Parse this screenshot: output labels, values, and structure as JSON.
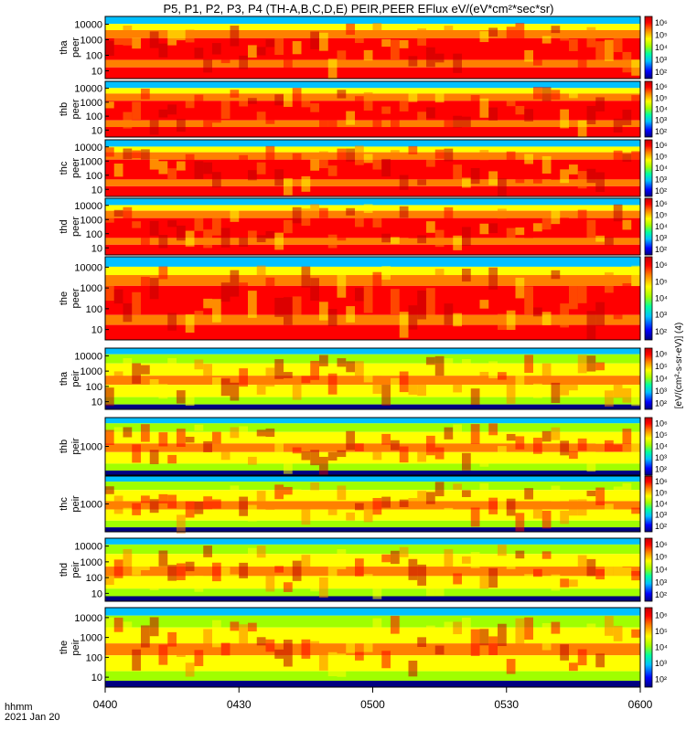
{
  "chart_data": {
    "type": "heatmap",
    "title": "P5, P1, P2, P3, P4 (TH-A,B,C,D,E) PEIR,PEER EFlux eV/(eV*cm²*sec*sr)",
    "x_ticks": [
      "0400",
      "0430",
      "0500",
      "0530",
      "0600"
    ],
    "x_corner_label": "hhmm",
    "x_date_label": "2021 Jan 20",
    "xlim": [
      "04:00",
      "06:00"
    ],
    "colorbar_scale": "log",
    "colorbar_ticks": [
      "10²",
      "10³",
      "10⁴",
      "10⁵",
      "10⁶"
    ],
    "colorbar_colors": [
      "#000080",
      "#0000ff",
      "#00c0ff",
      "#00ffa0",
      "#a0ff00",
      "#ffff00",
      "#ff8000",
      "#ff0000",
      "#c00000"
    ],
    "colorbar_label_top": "eV/(cm²-s-sr-eV) (4)",
    "colorbar_label_bottom": "[eV/(cm²-s-sr-eV)] (4)",
    "panels": [
      {
        "label_probe": "tha",
        "label_product": "peer",
        "yscale": "log",
        "yticks": [
          "10",
          "100",
          "1000",
          "10000"
        ]
      },
      {
        "label_probe": "thb",
        "label_product": "peer",
        "yscale": "log",
        "yticks": [
          "10",
          "100",
          "1000",
          "10000"
        ]
      },
      {
        "label_probe": "thc",
        "label_product": "peer",
        "yscale": "log",
        "yticks": [
          "10",
          "100",
          "1000",
          "10000"
        ]
      },
      {
        "label_probe": "thd",
        "label_product": "peer",
        "yscale": "log",
        "yticks": [
          "10",
          "100",
          "1000",
          "10000"
        ]
      },
      {
        "label_probe": "the",
        "label_product": "peer",
        "yscale": "log",
        "yticks": [
          "10",
          "100",
          "1000",
          "10000"
        ]
      },
      {
        "label_probe": "tha",
        "label_product": "peir",
        "yscale": "log",
        "yticks": [
          "10",
          "100",
          "1000",
          "10000"
        ]
      },
      {
        "label_probe": "thb",
        "label_product": "peir",
        "yscale": "log",
        "yticks": [
          "1000"
        ]
      },
      {
        "label_probe": "thc",
        "label_product": "peir",
        "yscale": "log",
        "yticks": [
          "1000"
        ]
      },
      {
        "label_probe": "thd",
        "label_product": "peir",
        "yscale": "log",
        "yticks": [
          "10",
          "100",
          "1000",
          "10000"
        ]
      },
      {
        "label_probe": "the",
        "label_product": "peir",
        "yscale": "log",
        "yticks": [
          "10",
          "100",
          "1000",
          "10000"
        ]
      }
    ]
  }
}
